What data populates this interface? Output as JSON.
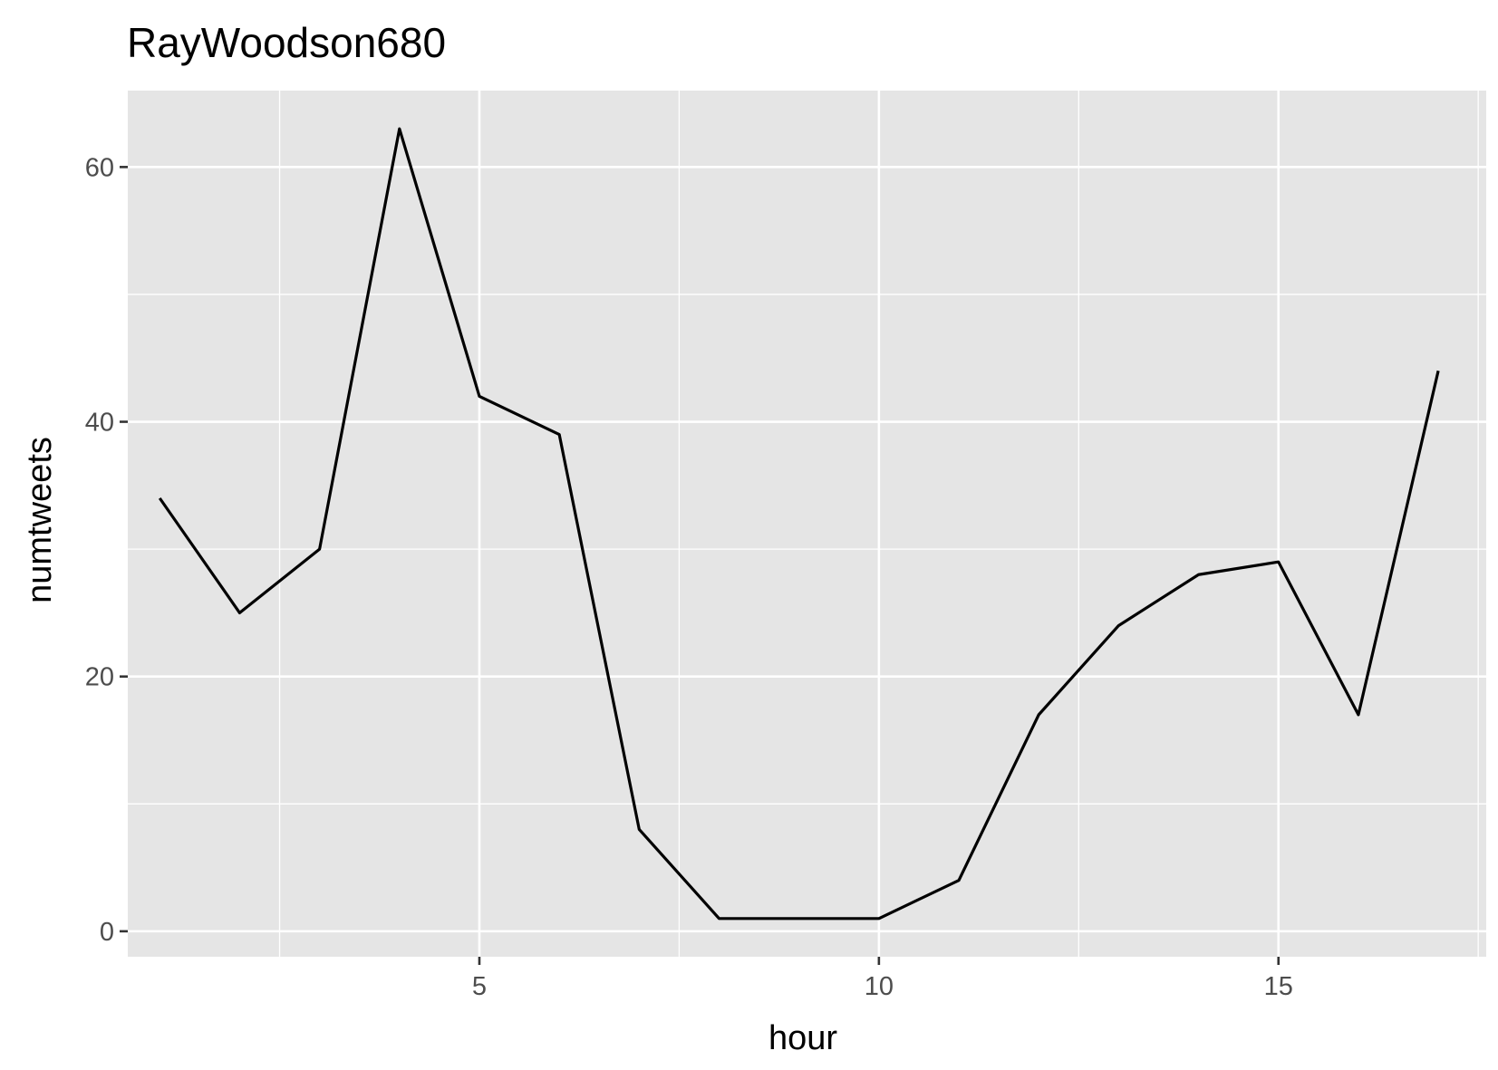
{
  "chart_data": {
    "type": "line",
    "title": "RayWoodson680",
    "xlabel": "hour",
    "ylabel": "numtweets",
    "xlim": [
      0.6,
      17.6
    ],
    "ylim": [
      -2,
      66
    ],
    "x_ticks": [
      5,
      10,
      15
    ],
    "y_ticks": [
      0,
      20,
      40,
      60
    ],
    "x_minor_ticks": [
      2.5,
      7.5,
      12.5,
      17.5
    ],
    "y_minor_ticks": [
      10,
      30,
      50
    ],
    "grid": true,
    "legend": "none",
    "series": [
      {
        "x": [
          1,
          2,
          3,
          4,
          5,
          6,
          7,
          8,
          9,
          10,
          11,
          12,
          13,
          14,
          15,
          16,
          17
        ],
        "values": [
          34,
          25,
          30,
          63,
          42,
          39,
          8,
          1,
          1,
          1,
          4,
          17,
          24,
          28,
          29,
          17,
          44
        ]
      }
    ],
    "colors": {
      "panel_background": "#e5e5e5",
      "grid": "#ffffff",
      "line": "#000000",
      "tick_text": "#4d4d4d",
      "tick_mark": "#333333"
    }
  }
}
